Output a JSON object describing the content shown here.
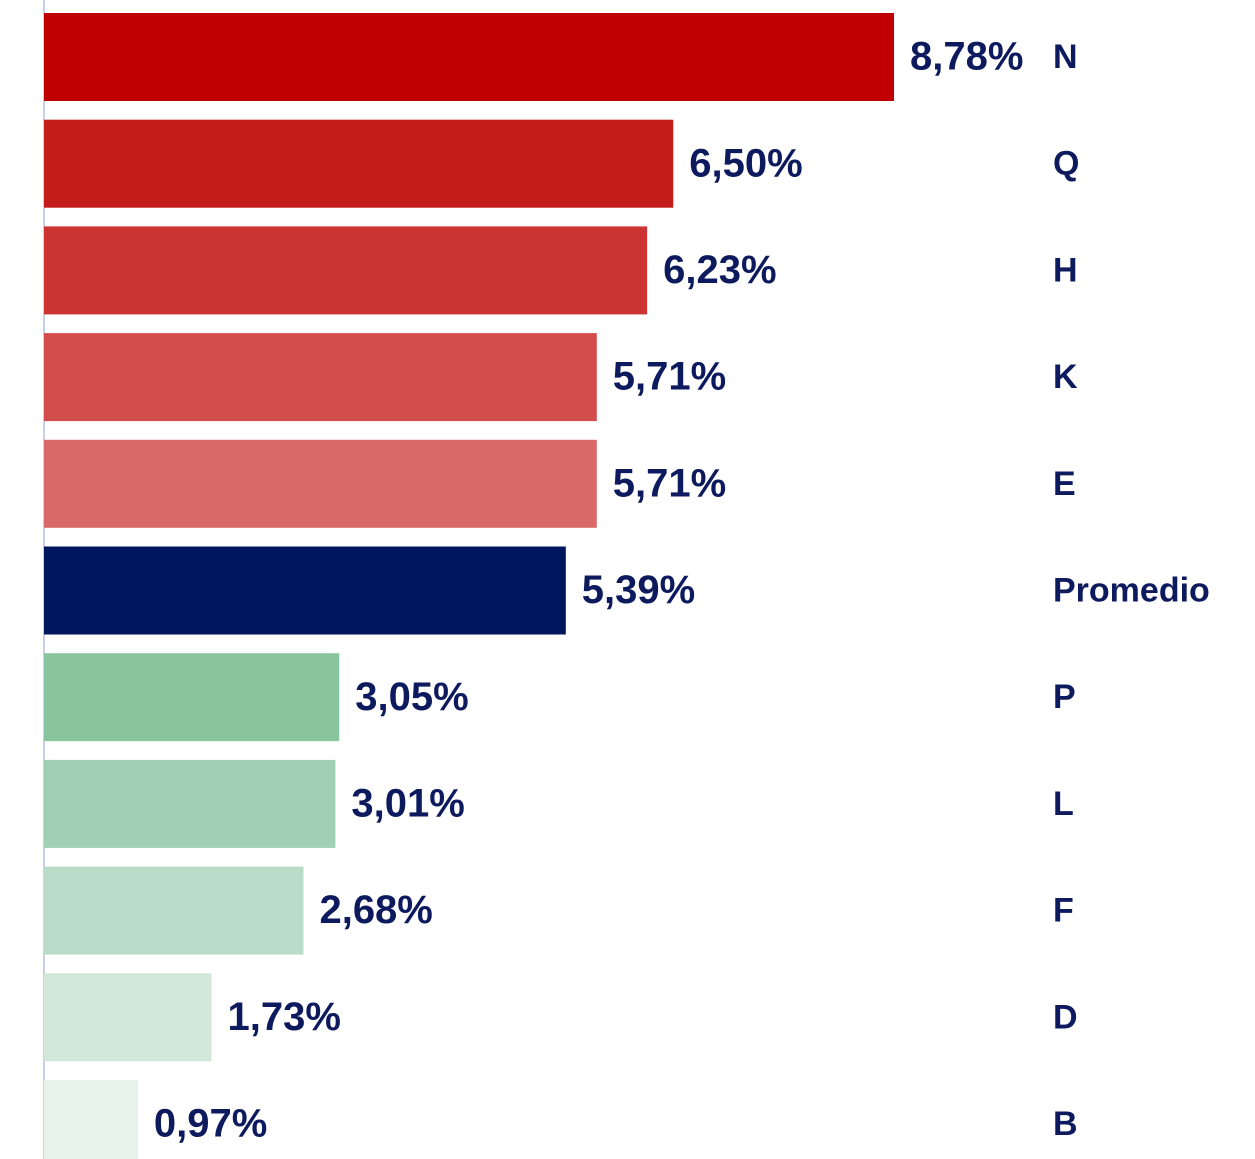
{
  "chart_data": {
    "type": "bar",
    "orientation": "horizontal",
    "categories": [
      "N",
      "Q",
      "H",
      "K",
      "E",
      "Promedio",
      "P",
      "L",
      "F",
      "D",
      "B"
    ],
    "values": [
      8.78,
      6.5,
      6.23,
      5.71,
      5.71,
      5.39,
      3.05,
      3.01,
      2.68,
      1.73,
      0.97
    ],
    "value_labels": [
      "8,78%",
      "6,50%",
      "6,23%",
      "5,71%",
      "5,71%",
      "5,39%",
      "3,05%",
      "3,01%",
      "2,68%",
      "1,73%",
      "0,97%"
    ],
    "colors": [
      "#c00000",
      "#c41b1b",
      "#cc3333",
      "#d44d4d",
      "#d96868",
      "#00165e",
      "#88c49c",
      "#a0cfb3",
      "#b9dcc9",
      "#d1e8db",
      "#e7f2eb"
    ]
  }
}
